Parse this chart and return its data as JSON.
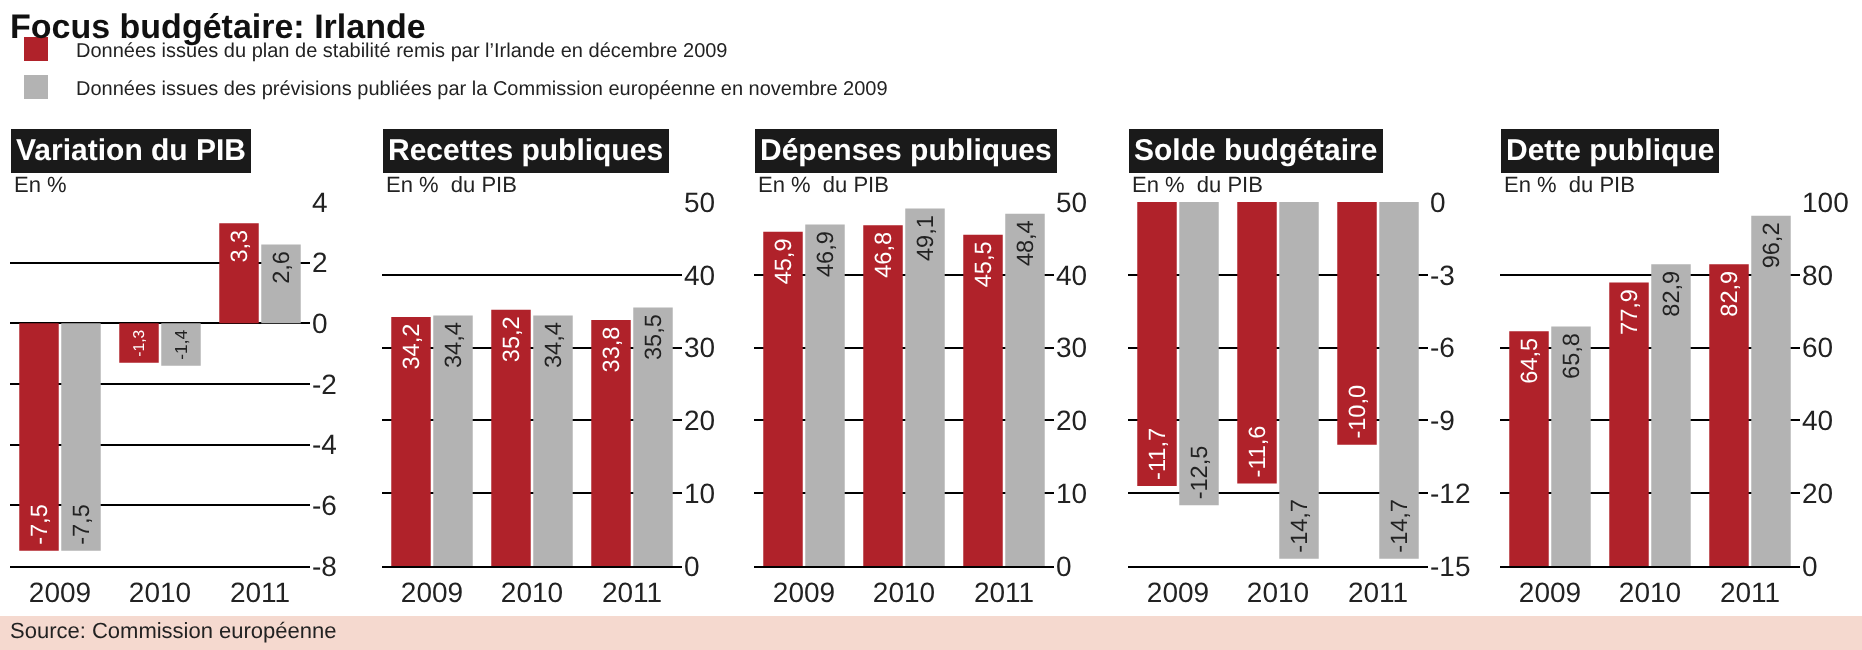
{
  "chart_data": [
    {
      "type": "bar",
      "title": "Variation du PIB",
      "ylabel": "En %",
      "annotations": [
        "Focus budgétaire: Irlande",
        "Source: Commission européenne"
      ],
      "categories": [
        "2009",
        "2010",
        "2011"
      ],
      "ylim": [
        -8,
        4
      ],
      "yticks": [
        -8,
        -6,
        -4,
        -2,
        0,
        2,
        4
      ],
      "grid": "y",
      "legend": "top right",
      "series": [
        {
          "name": "Données issues du plan de stabilité remis par l’Irlande en décembre 2009",
          "color": "#b0222a",
          "values": [
            -7.5,
            -1.3,
            3.3
          ],
          "value_labels": [
            "-7,5",
            "-1,3",
            "3,3"
          ]
        },
        {
          "name": "Données issues des prévisions publiées par la Commission européenne en novembre 2009",
          "color": "#b3b3b3",
          "values": [
            -7.5,
            -1.4,
            2.6
          ],
          "value_labels": [
            "-7,5",
            "-1,4",
            "2,6"
          ]
        }
      ]
    },
    {
      "type": "bar",
      "title": "Recettes publiques",
      "ylabel": "En %  du PIB",
      "categories": [
        "2009",
        "2010",
        "2011"
      ],
      "ylim": [
        0,
        50
      ],
      "yticks": [
        0,
        10,
        20,
        30,
        40,
        50
      ],
      "grid": "y",
      "series": [
        {
          "color": "#b0222a",
          "values": [
            34.2,
            35.2,
            33.8
          ],
          "value_labels": [
            "34,2",
            "35,2",
            "33,8"
          ]
        },
        {
          "color": "#b3b3b3",
          "values": [
            34.4,
            34.4,
            35.5
          ],
          "value_labels": [
            "34,4",
            "34,4",
            "35,5"
          ]
        }
      ]
    },
    {
      "type": "bar",
      "title": "Dépenses publiques",
      "ylabel": "En %  du PIB",
      "categories": [
        "2009",
        "2010",
        "2011"
      ],
      "ylim": [
        0,
        50
      ],
      "yticks": [
        0,
        10,
        20,
        30,
        40,
        50
      ],
      "grid": "y",
      "series": [
        {
          "color": "#b0222a",
          "values": [
            45.9,
            46.8,
            45.5
          ],
          "value_labels": [
            "45,9",
            "46,8",
            "45,5"
          ]
        },
        {
          "color": "#b3b3b3",
          "values": [
            46.9,
            49.1,
            48.4
          ],
          "value_labels": [
            "46,9",
            "49,1",
            "48,4"
          ]
        }
      ]
    },
    {
      "type": "bar",
      "title": "Solde budgétaire",
      "ylabel": "En %  du PIB",
      "categories": [
        "2009",
        "2010",
        "2011"
      ],
      "ylim": [
        -15,
        0
      ],
      "yticks": [
        -15,
        -12,
        -9,
        -6,
        -3,
        0
      ],
      "grid": "y",
      "series": [
        {
          "color": "#b0222a",
          "values": [
            -11.7,
            -11.6,
            -10.0
          ],
          "value_labels": [
            "-11,7",
            "-11,6",
            "-10,0"
          ]
        },
        {
          "color": "#b3b3b3",
          "values": [
            -12.5,
            -14.7,
            -14.7
          ],
          "value_labels": [
            "-12,5",
            "-14,7",
            "-14,7"
          ]
        }
      ]
    },
    {
      "type": "bar",
      "title": "Dette publique",
      "ylabel": "En %  du PIB",
      "categories": [
        "2009",
        "2010",
        "2011"
      ],
      "ylim": [
        0,
        100
      ],
      "yticks": [
        0,
        20,
        40,
        60,
        80,
        100
      ],
      "grid": "y",
      "series": [
        {
          "color": "#b0222a",
          "values": [
            64.5,
            77.9,
            82.9
          ],
          "value_labels": [
            "64,5",
            "77,9",
            "82,9"
          ]
        },
        {
          "color": "#b3b3b3",
          "values": [
            65.8,
            82.9,
            96.2
          ],
          "value_labels": [
            "65,8",
            "82,9",
            "96,2"
          ]
        }
      ]
    }
  ]
}
